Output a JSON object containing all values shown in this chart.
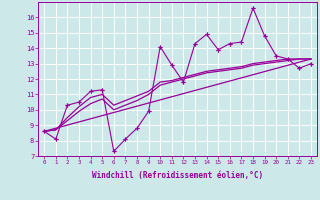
{
  "xlabel": "Windchill (Refroidissement éolien,°C)",
  "bg_color": "#cce8e8",
  "line_color": "#990099",
  "grid_color": "#ffffff",
  "xlim": [
    -0.5,
    23.5
  ],
  "ylim": [
    7,
    17
  ],
  "yticks": [
    7,
    8,
    9,
    10,
    11,
    12,
    13,
    14,
    15,
    16
  ],
  "xticks": [
    0,
    1,
    2,
    3,
    4,
    5,
    6,
    7,
    8,
    9,
    10,
    11,
    12,
    13,
    14,
    15,
    16,
    17,
    18,
    19,
    20,
    21,
    22,
    23
  ],
  "series": [
    {
      "x": [
        0,
        1,
        2,
        3,
        4,
        5,
        6,
        7,
        8,
        9,
        10,
        11,
        12,
        13,
        14,
        15,
        16,
        17,
        18,
        19,
        20,
        21,
        22,
        23
      ],
      "y": [
        8.6,
        8.1,
        10.3,
        10.5,
        11.2,
        11.3,
        7.3,
        8.1,
        8.8,
        9.9,
        14.1,
        12.9,
        11.8,
        14.3,
        14.9,
        13.9,
        14.3,
        14.4,
        16.6,
        14.8,
        13.5,
        13.3,
        12.7,
        13.0
      ],
      "marker": "+",
      "markersize": 3.0,
      "linewidth": 0.8
    },
    {
      "x": [
        0,
        1,
        2,
        3,
        4,
        5,
        6,
        7,
        8,
        9,
        10,
        11,
        12,
        13,
        14,
        15,
        16,
        17,
        18,
        19,
        20,
        21,
        22,
        23
      ],
      "y": [
        8.6,
        8.1,
        10.3,
        10.5,
        11.2,
        11.3,
        7.3,
        8.1,
        8.8,
        9.9,
        14.1,
        12.9,
        11.8,
        14.3,
        14.9,
        13.9,
        14.3,
        14.4,
        16.6,
        14.8,
        13.5,
        13.3,
        12.7,
        13.0
      ],
      "marker": "+",
      "markersize": 3.0,
      "linewidth": 0.0,
      "linestyle": "none"
    },
    {
      "x": [
        0,
        1,
        2,
        3,
        4,
        5,
        6,
        7,
        8,
        9,
        10,
        11,
        12,
        13,
        14,
        15,
        16,
        17,
        18,
        19,
        20,
        21,
        22,
        23
      ],
      "y": [
        8.6,
        8.7,
        9.5,
        10.2,
        10.8,
        11.0,
        10.3,
        10.6,
        10.9,
        11.2,
        11.8,
        11.9,
        12.1,
        12.3,
        12.5,
        12.6,
        12.7,
        12.8,
        13.0,
        13.1,
        13.2,
        13.3,
        13.3,
        13.3
      ],
      "marker": null,
      "linewidth": 0.9
    },
    {
      "x": [
        0,
        1,
        2,
        3,
        4,
        5,
        6,
        7,
        8,
        9,
        10,
        11,
        12,
        13,
        14,
        15,
        16,
        17,
        18,
        19,
        20,
        21,
        22,
        23
      ],
      "y": [
        8.6,
        8.7,
        9.3,
        9.9,
        10.4,
        10.7,
        10.0,
        10.3,
        10.6,
        11.0,
        11.6,
        11.8,
        12.0,
        12.2,
        12.4,
        12.5,
        12.6,
        12.7,
        12.9,
        13.0,
        13.1,
        13.2,
        13.3,
        13.3
      ],
      "marker": null,
      "linewidth": 0.9
    },
    {
      "x": [
        0,
        23
      ],
      "y": [
        8.6,
        13.3
      ],
      "marker": null,
      "linewidth": 0.9
    }
  ]
}
